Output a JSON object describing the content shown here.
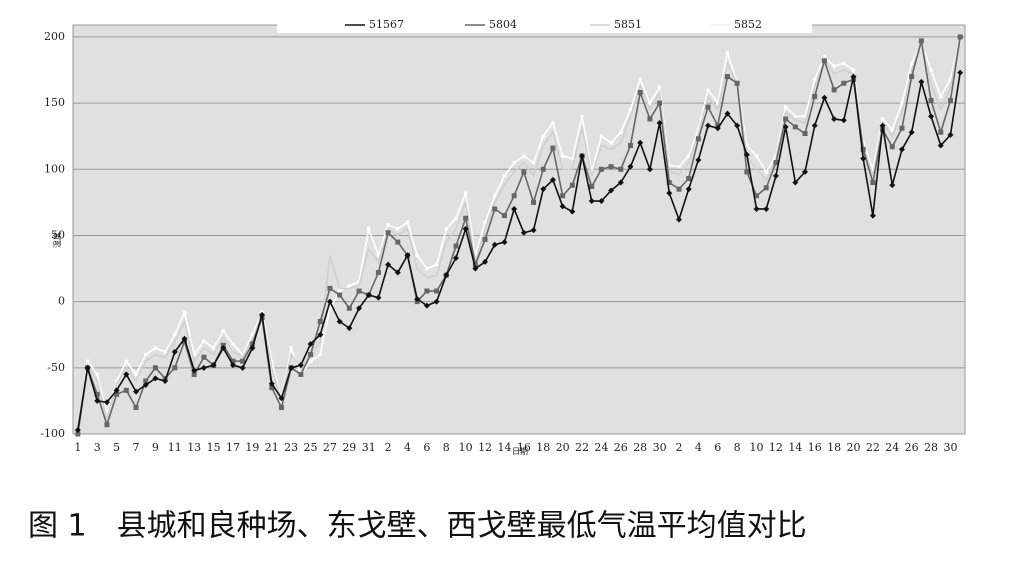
{
  "chart_data": {
    "type": "line",
    "x_label": "日期",
    "y_label": "温度",
    "caption": "图 1　县城和良种场、东戈壁、西戈壁最低气温平均值对比",
    "categories": [
      "1",
      null,
      "3",
      null,
      "5",
      null,
      "7",
      null,
      "9",
      null,
      "11",
      null,
      "13",
      null,
      "15",
      null,
      "17",
      null,
      "19",
      null,
      "21",
      null,
      "23",
      null,
      "25",
      null,
      "27",
      null,
      "29",
      null,
      "31",
      null,
      "2",
      null,
      "4",
      null,
      "6",
      null,
      "8",
      null,
      "10",
      null,
      "12",
      null,
      "14",
      null,
      "16",
      null,
      "18",
      null,
      "20",
      null,
      "22",
      null,
      "24",
      null,
      "26",
      null,
      "28",
      null,
      "30",
      null,
      "2",
      null,
      "4",
      null,
      "6",
      null,
      "8",
      null,
      "10",
      null,
      "12",
      null,
      "14",
      null,
      "16",
      null,
      "18",
      null,
      "20",
      null,
      "22",
      null,
      "24",
      null,
      "26",
      null,
      "28",
      null,
      "30",
      null
    ],
    "series": [
      {
        "name": "51567",
        "color": "#111111",
        "marker": "diamond",
        "values": [
          -97,
          -50,
          -75,
          -76,
          -67,
          -55,
          -68,
          -63,
          -58,
          -60,
          -38,
          -28,
          -52,
          -50,
          -48,
          -35,
          -48,
          -50,
          -35,
          -10,
          -62,
          -73,
          -50,
          -48,
          -32,
          -25,
          0,
          -15,
          -20,
          -5,
          5,
          3,
          28,
          22,
          35,
          2,
          -3,
          0,
          20,
          33,
          55,
          25,
          30,
          43,
          45,
          70,
          52,
          54,
          85,
          92,
          72,
          68,
          110,
          76,
          76,
          84,
          90,
          102,
          120,
          100,
          135,
          82,
          62,
          85,
          107,
          133,
          131,
          142,
          133,
          111,
          70,
          70,
          95,
          132,
          90,
          98,
          133,
          154,
          138,
          137,
          170,
          108,
          65,
          133,
          88,
          115,
          128,
          166,
          140,
          118,
          126,
          173
        ]
      },
      {
        "name": "5804",
        "color": "#666666",
        "marker": "square",
        "values": [
          -100,
          -50,
          -70,
          -93,
          -70,
          -67,
          -80,
          -60,
          -50,
          -58,
          -50,
          -30,
          -55,
          -42,
          -48,
          -33,
          -45,
          -45,
          -32,
          -12,
          -65,
          -80,
          -50,
          -55,
          -40,
          -15,
          10,
          5,
          -5,
          8,
          5,
          22,
          52,
          45,
          35,
          0,
          8,
          8,
          20,
          42,
          63,
          28,
          47,
          70,
          65,
          80,
          98,
          75,
          100,
          116,
          80,
          88,
          110,
          87,
          100,
          102,
          100,
          118,
          158,
          138,
          150,
          90,
          85,
          93,
          123,
          147,
          133,
          170,
          165,
          98,
          80,
          86,
          105,
          138,
          132,
          127,
          155,
          182,
          160,
          165,
          168,
          115,
          90,
          130,
          117,
          131,
          170,
          197,
          152,
          128,
          152,
          200
        ]
      },
      {
        "name": "5851",
        "color": "#cfcfcf",
        "marker": "none",
        "values": [
          -100,
          -48,
          -60,
          -88,
          -62,
          -50,
          -60,
          -45,
          -40,
          -42,
          -30,
          -15,
          -45,
          -35,
          -40,
          -27,
          -38,
          -42,
          -28,
          -10,
          -50,
          -75,
          -40,
          -50,
          -40,
          -30,
          35,
          10,
          10,
          12,
          40,
          30,
          55,
          50,
          55,
          25,
          18,
          20,
          45,
          55,
          75,
          30,
          55,
          75,
          88,
          98,
          105,
          95,
          118,
          128,
          100,
          100,
          132,
          95,
          118,
          115,
          120,
          140,
          163,
          145,
          158,
          98,
          96,
          105,
          127,
          155,
          145,
          180,
          165,
          110,
          100,
          92,
          108,
          143,
          137,
          135,
          162,
          183,
          172,
          175,
          172,
          118,
          95,
          135,
          125,
          143,
          175,
          196,
          165,
          145,
          162,
          200
        ]
      },
      {
        "name": "5852",
        "color": "#ffffff",
        "marker": "dot",
        "values": [
          -100,
          -45,
          -55,
          -85,
          -60,
          -45,
          -55,
          -40,
          -35,
          -38,
          -25,
          -8,
          -40,
          -30,
          -35,
          -22,
          -32,
          -40,
          -25,
          -8,
          -45,
          -75,
          -35,
          -55,
          -45,
          -40,
          -5,
          8,
          12,
          15,
          55,
          35,
          58,
          55,
          60,
          35,
          25,
          28,
          55,
          63,
          82,
          35,
          60,
          80,
          95,
          105,
          110,
          105,
          125,
          135,
          110,
          108,
          140,
          98,
          125,
          120,
          128,
          145,
          168,
          150,
          162,
          103,
          102,
          110,
          130,
          160,
          150,
          188,
          165,
          118,
          110,
          98,
          110,
          147,
          140,
          140,
          168,
          185,
          178,
          180,
          175,
          120,
          100,
          138,
          130,
          150,
          180,
          195,
          175,
          155,
          168,
          200
        ]
      }
    ],
    "ylim": [
      -100,
      209
    ],
    "yticks": [
      -100,
      -50,
      0,
      50,
      100,
      150,
      200
    ],
    "grid": true,
    "legend": "top"
  }
}
